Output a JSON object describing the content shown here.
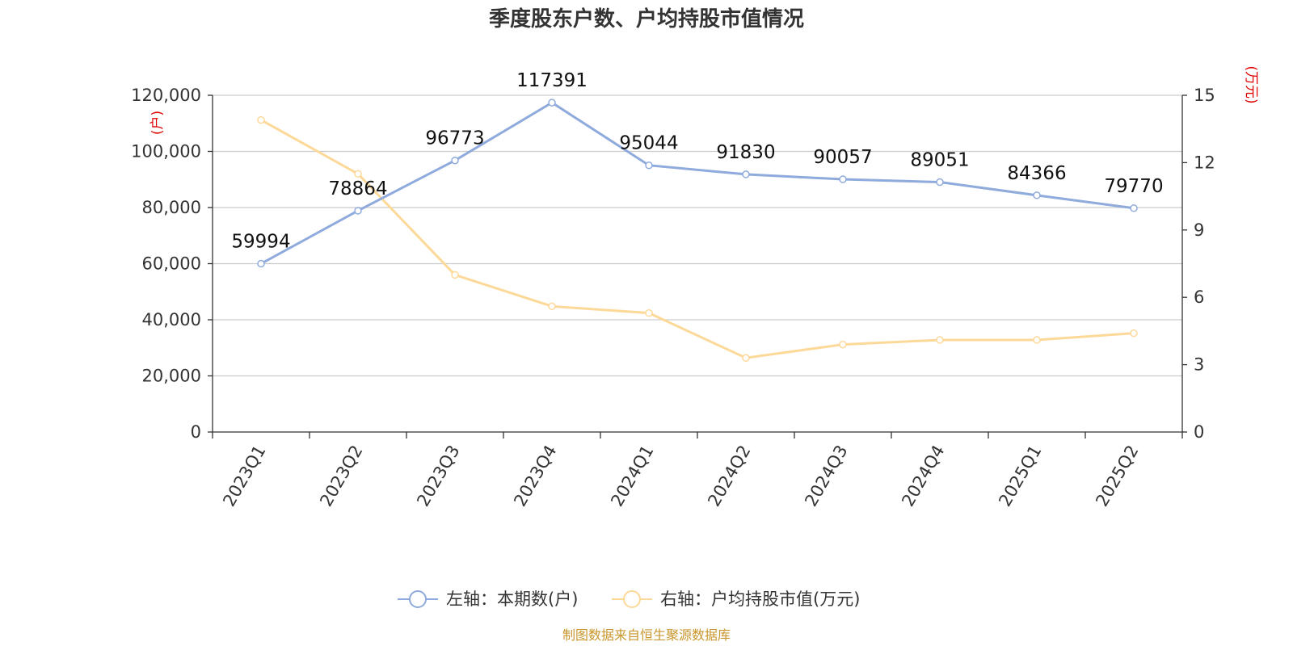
{
  "title": "季度股东户数、户均持股市值情况",
  "source": "制图数据来自恒生聚源数据库",
  "left_unit": "(户)",
  "right_unit": "(万元)",
  "colors": {
    "series1": "#8faadc",
    "series2": "#fdd999",
    "unit": "#e00000",
    "source": "#c8962c"
  },
  "chart_data": {
    "type": "line",
    "title": "季度股东户数、户均持股市值情况",
    "categories": [
      "2023Q1",
      "2023Q2",
      "2023Q3",
      "2023Q4",
      "2024Q1",
      "2024Q2",
      "2024Q3",
      "2024Q4",
      "2025Q1",
      "2025Q2"
    ],
    "y_left": {
      "unit": "(户)",
      "range": [
        0,
        120000
      ],
      "ticks": [
        "0",
        "20,000",
        "40,000",
        "60,000",
        "80,000",
        "100,000",
        "120,000"
      ]
    },
    "y_right": {
      "unit": "(万元)",
      "range": [
        0,
        15
      ],
      "ticks": [
        "0",
        "3",
        "6",
        "9",
        "12",
        "15"
      ]
    },
    "grid": true,
    "legend_position": "bottom",
    "series": [
      {
        "name": "左轴：本期数(户)",
        "axis": "left",
        "values": [
          59994,
          78864,
          96773,
          117391,
          95044,
          91830,
          90057,
          89051,
          84366,
          79770
        ],
        "labels": [
          "59994",
          "78864",
          "96773",
          "117391",
          "95044",
          "91830",
          "90057",
          "89051",
          "84366",
          "79770"
        ]
      },
      {
        "name": "右轴：户均持股市值(万元)",
        "axis": "right",
        "values": [
          13.9,
          11.5,
          7.0,
          5.6,
          5.3,
          3.3,
          3.9,
          4.1,
          4.1,
          4.4
        ]
      }
    ]
  }
}
